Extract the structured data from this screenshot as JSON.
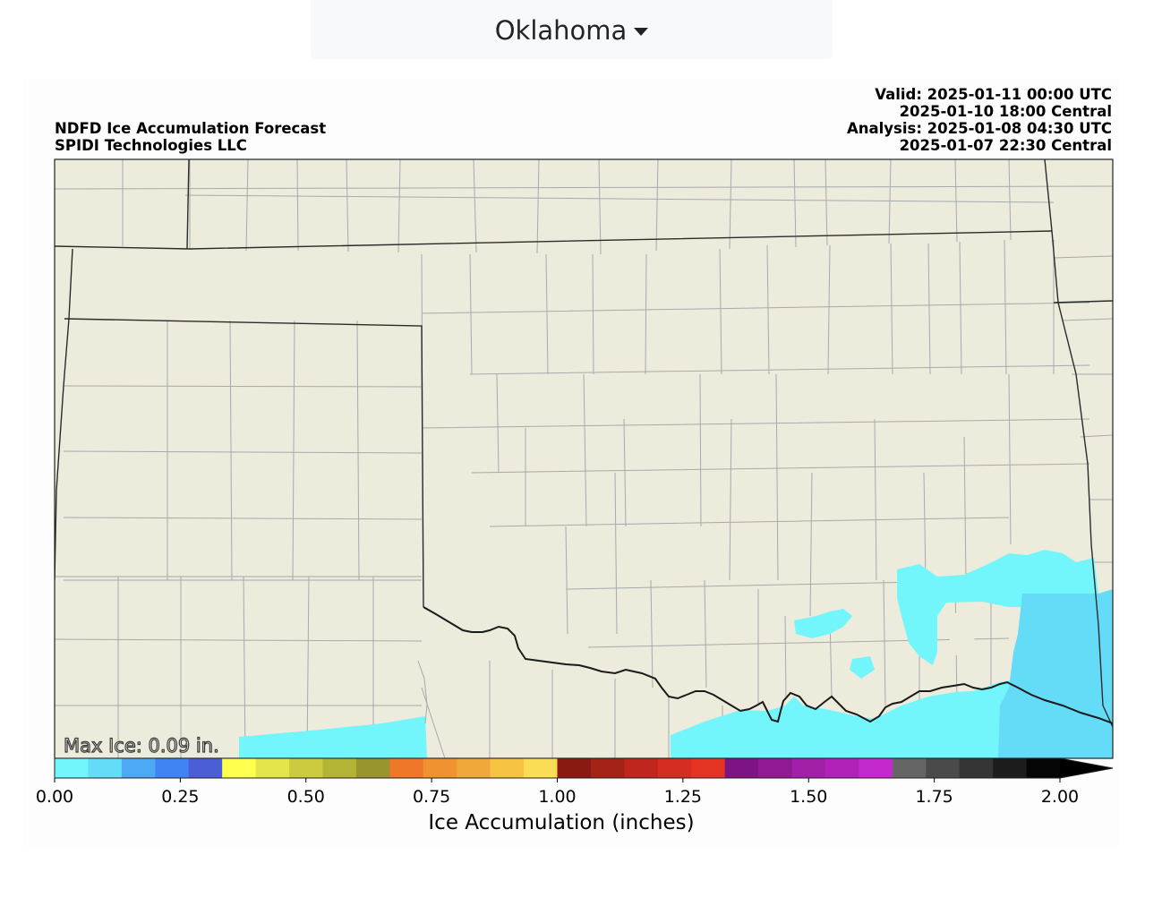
{
  "selector": {
    "state": "Oklahoma"
  },
  "header": {
    "title_line1": "NDFD Ice Accumulation Forecast",
    "title_line2": "SPIDI Technologies LLC",
    "valid_utc": "Valid: 2025-01-11 00:00 UTC",
    "valid_central": "2025-01-10 18:00 Central",
    "analysis_utc": "Analysis: 2025-01-08 04:30 UTC",
    "analysis_central": "2025-01-07 22:30 Central"
  },
  "map": {
    "max_ice_label": "Max Ice: 0.09 in.",
    "land_color": "#ecebdc",
    "ice_light_color": "#72f6fb",
    "ice_medium_color": "#65dcf7"
  },
  "colorbar": {
    "label": "Ice Accumulation (inches)",
    "ticks": [
      "0.00",
      "0.25",
      "0.50",
      "0.75",
      "1.00",
      "1.25",
      "1.50",
      "1.75",
      "2.00"
    ],
    "tick_values": [
      0,
      0.25,
      0.5,
      0.75,
      1.0,
      1.25,
      1.5,
      1.75,
      2.0
    ],
    "colors": [
      "#72f6fb",
      "#65dcf7",
      "#4ea9f4",
      "#4083f2",
      "#4c5ed6",
      "#ffff4d",
      "#e4e54a",
      "#cccb40",
      "#b3b336",
      "#98952e",
      "#ee772a",
      "#f09232",
      "#f1a83a",
      "#f6c343",
      "#fadd54",
      "#8a1a11",
      "#a42316",
      "#bf261d",
      "#d72c20",
      "#e53424",
      "#7e1484",
      "#8f1a94",
      "#a220a8",
      "#b122b9",
      "#c429cf",
      "#656565",
      "#4a4a4a",
      "#353535",
      "#1c1c1c",
      "#050505"
    ]
  }
}
